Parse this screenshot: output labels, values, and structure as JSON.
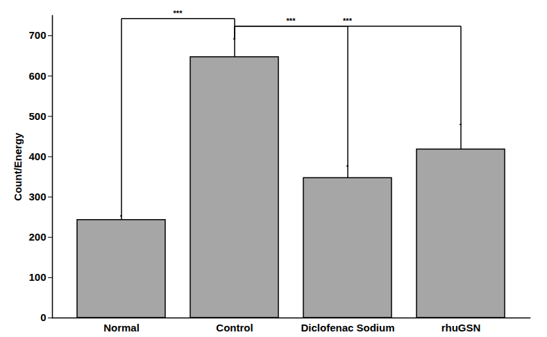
{
  "chart_data": {
    "type": "bar",
    "y_label": "Count/Energy",
    "categories": [
      "Normal",
      "Control",
      "Diclofenac Sodium",
      "rhuGSN"
    ],
    "values": [
      243,
      647,
      347,
      418
    ],
    "errors": [
      10,
      45,
      30,
      62
    ],
    "color": "#a6a6a6",
    "ylim": [
      0,
      750
    ],
    "yticks": [
      0,
      100,
      200,
      300,
      400,
      500,
      600,
      700
    ],
    "significance": [
      {
        "from": "Normal",
        "to": "Control",
        "label": "***"
      },
      {
        "from": "Control",
        "to": "Diclofenac Sodium",
        "label": "***"
      },
      {
        "from": "Control",
        "to": "rhuGSN",
        "label": "***"
      }
    ]
  }
}
